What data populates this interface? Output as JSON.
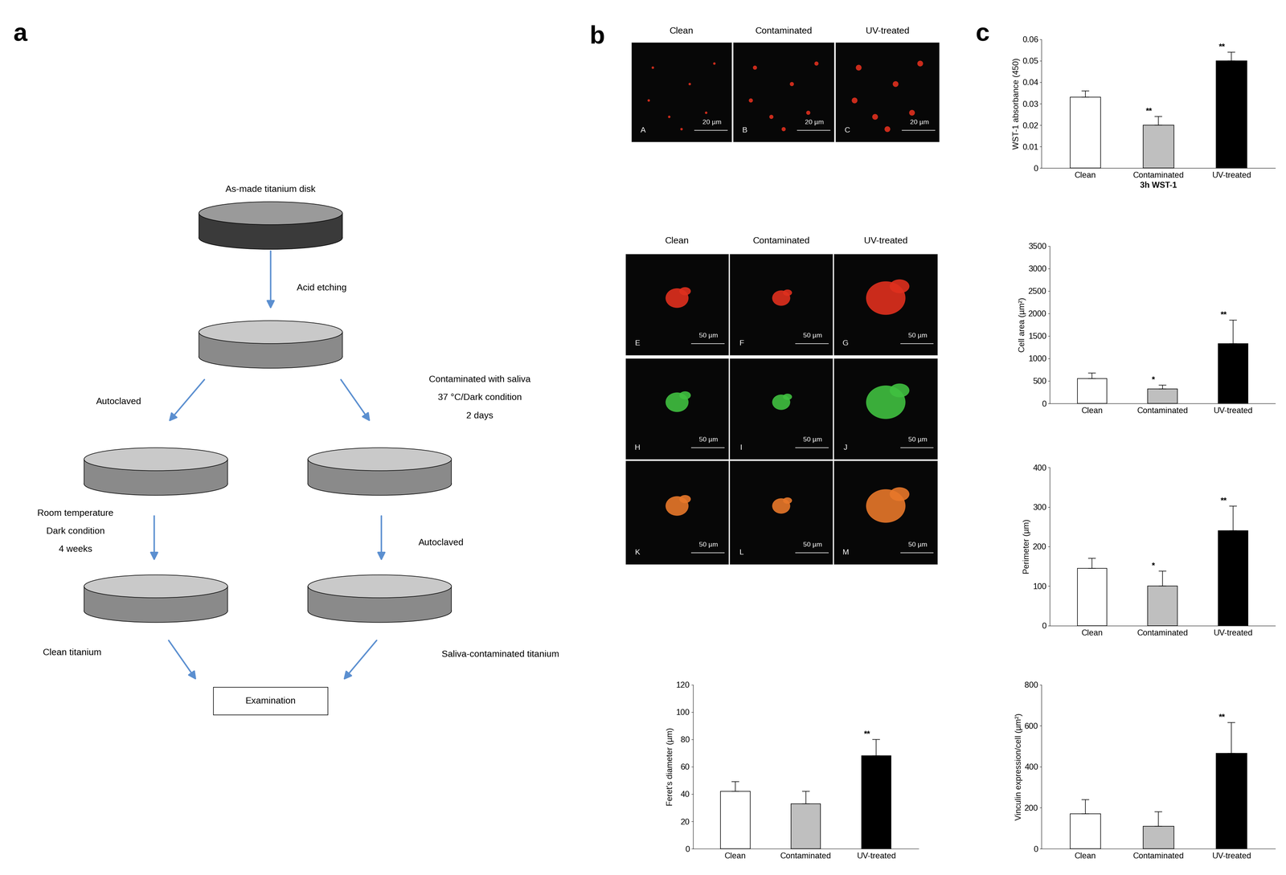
{
  "panel_labels": [
    "a",
    "b",
    "c"
  ],
  "diagram": {
    "start": "As-made titanium disk",
    "step": "Acid etching",
    "left_branch": {
      "first": [
        "Autoclaved"
      ],
      "second": [
        "Room temperature",
        "Dark condition",
        "4 weeks"
      ],
      "result": "Clean titanium"
    },
    "right_branch": {
      "first": [
        "Contaminated with saliva",
        "37 °C/Dark condition",
        "2 days"
      ],
      "second": [
        "Autoclaved"
      ],
      "result": "Saliva-contaminated titanium"
    },
    "end": "Examination"
  },
  "micrographs": {
    "groups": [
      {
        "columns": [
          "Clean",
          "Contaminated",
          "UV-treated"
        ],
        "rows": [
          [
            "A",
            "B",
            "C"
          ]
        ],
        "scale_bar": "20 µm"
      },
      {
        "columns": [
          "Clean",
          "Contaminated",
          "UV-treated"
        ],
        "rows": [
          [
            "E",
            "F",
            "G"
          ],
          [
            "H",
            "I",
            "J"
          ],
          [
            "K",
            "L",
            "M"
          ]
        ],
        "scale_bar": "50 µm"
      }
    ]
  },
  "chart_data": [
    {
      "type": "bar",
      "y_label": "WST-1 absorbance (450)",
      "x_label": "3h WST-1",
      "categories": [
        "Clean",
        "Contaminated",
        "UV-treated"
      ],
      "values": [
        0.033,
        0.02,
        0.05
      ],
      "errors": [
        0.003,
        0.004,
        0.004
      ],
      "significance": [
        null,
        "**",
        "**"
      ],
      "colors": [
        "#ffffff",
        "#bfbfbf",
        "#000000"
      ],
      "ylim": [
        0,
        0.06
      ],
      "yticks": [
        0,
        0.01,
        0.02,
        0.03,
        0.04,
        0.05,
        0.06
      ]
    },
    {
      "type": "bar",
      "y_label": "Cell area (µm²)",
      "categories": [
        "Clean",
        "Contaminated",
        "UV-treated"
      ],
      "values": [
        550,
        320,
        1330
      ],
      "errors": [
        130,
        90,
        520
      ],
      "significance": [
        null,
        "*",
        "**"
      ],
      "colors": [
        "#ffffff",
        "#bfbfbf",
        "#000000"
      ],
      "ylim": [
        0,
        3500
      ],
      "yticks": [
        0,
        500,
        1000,
        1500,
        2000,
        2500,
        3000,
        3500
      ]
    },
    {
      "type": "bar",
      "y_label": "Perimeter (µm)",
      "categories": [
        "Clean",
        "Contaminated",
        "UV-treated"
      ],
      "values": [
        145,
        100,
        240
      ],
      "errors": [
        25,
        38,
        62
      ],
      "significance": [
        null,
        "*",
        "**"
      ],
      "colors": [
        "#ffffff",
        "#bfbfbf",
        "#000000"
      ],
      "ylim": [
        0,
        400
      ],
      "yticks": [
        0,
        100,
        200,
        300,
        400
      ]
    },
    {
      "type": "bar",
      "y_label": "Feret's diameter (µm)",
      "categories": [
        "Clean",
        "Contaminated",
        "UV-treated"
      ],
      "values": [
        42,
        33,
        68
      ],
      "errors": [
        7,
        9,
        12
      ],
      "significance": [
        null,
        null,
        "**"
      ],
      "colors": [
        "#ffffff",
        "#bfbfbf",
        "#000000"
      ],
      "ylim": [
        0,
        120
      ],
      "yticks": [
        0,
        20,
        40,
        60,
        80,
        100,
        120
      ]
    },
    {
      "type": "bar",
      "y_label": "Vinculin expression/cell (µm²)",
      "categories": [
        "Clean",
        "Contaminated",
        "UV-treated"
      ],
      "values": [
        170,
        110,
        465
      ],
      "errors": [
        70,
        70,
        150
      ],
      "significance": [
        null,
        null,
        "**"
      ],
      "colors": [
        "#ffffff",
        "#bfbfbf",
        "#000000"
      ],
      "ylim": [
        0,
        800
      ],
      "yticks": [
        0,
        200,
        400,
        600,
        800
      ]
    }
  ]
}
